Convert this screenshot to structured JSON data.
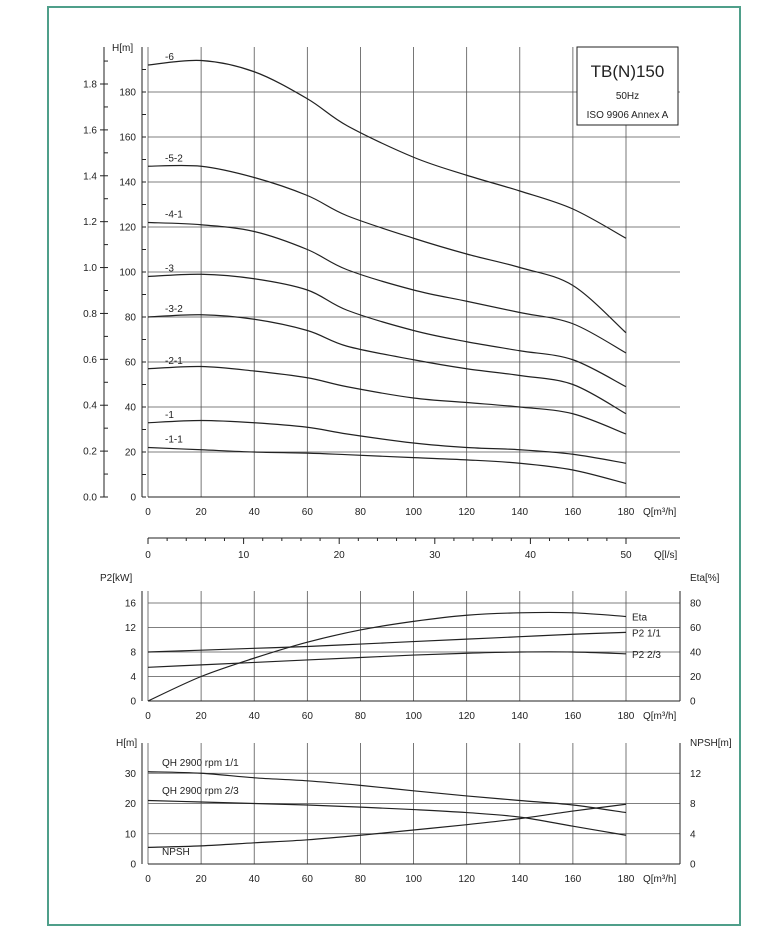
{
  "colors": {
    "frame": "#4f9f8a",
    "curve": "#222222",
    "grid": "#555555"
  },
  "chart_data": [
    {
      "type": "line",
      "id": "head",
      "title_box": {
        "line1": "TB(N)150",
        "line2": "50Hz",
        "line3": "ISO 9906 Annex A"
      },
      "ylabel": "H[m]",
      "y2label": "",
      "xlabel": "Q[m³/h]",
      "xlim": [
        0,
        180
      ],
      "ylim": [
        0,
        200
      ],
      "y2lim": [
        0,
        1.8
      ],
      "x_ticks": [
        "0",
        "20",
        "40",
        "60",
        "80",
        "100",
        "120",
        "140",
        "160",
        "180"
      ],
      "y_ticks": [
        "0",
        "20",
        "40",
        "60",
        "80",
        "100",
        "120",
        "140",
        "160",
        "180"
      ],
      "y2_ticks": [
        "0.0",
        "0.2",
        "0.4",
        "0.6",
        "0.8",
        "1.0",
        "1.2",
        "1.4",
        "1.6",
        "1.8"
      ],
      "secondary_x": {
        "label": "Q[l/s]",
        "ticks": [
          "0",
          "10",
          "20",
          "30",
          "40",
          "50"
        ],
        "xlim": [
          0,
          50
        ]
      },
      "series": [
        {
          "name": "-6",
          "x": [
            0,
            20,
            40,
            60,
            75,
            100,
            120,
            140,
            160,
            180
          ],
          "y": [
            192,
            194,
            189,
            177,
            165,
            151,
            143,
            136,
            128,
            115
          ]
        },
        {
          "name": "-5-2",
          "x": [
            0,
            20,
            40,
            60,
            75,
            100,
            120,
            140,
            160,
            180
          ],
          "y": [
            147,
            147,
            142,
            134,
            125,
            115,
            108,
            102,
            94,
            73
          ]
        },
        {
          "name": "-4-1",
          "x": [
            0,
            20,
            40,
            60,
            75,
            100,
            120,
            140,
            160,
            180
          ],
          "y": [
            122,
            121,
            118,
            110,
            101,
            92,
            87,
            82,
            77,
            64
          ]
        },
        {
          "name": "-3",
          "x": [
            0,
            20,
            40,
            60,
            75,
            100,
            120,
            140,
            160,
            180
          ],
          "y": [
            98,
            99,
            97,
            92,
            83,
            74,
            69,
            65,
            61,
            49
          ]
        },
        {
          "name": "-3-2",
          "x": [
            0,
            20,
            40,
            60,
            75,
            100,
            120,
            140,
            160,
            180
          ],
          "y": [
            80,
            81,
            79,
            74,
            67,
            61,
            57,
            54,
            50,
            37
          ]
        },
        {
          "name": "-2-1",
          "x": [
            0,
            20,
            40,
            60,
            75,
            100,
            120,
            140,
            160,
            180
          ],
          "y": [
            57,
            58,
            56,
            53,
            49,
            44,
            42,
            40,
            37,
            28
          ]
        },
        {
          "name": "-1",
          "x": [
            0,
            20,
            40,
            60,
            75,
            100,
            120,
            140,
            160,
            180
          ],
          "y": [
            33,
            34,
            33,
            31,
            28,
            24,
            22,
            21,
            19,
            15
          ]
        },
        {
          "name": "-1-1",
          "x": [
            0,
            20,
            40,
            60,
            75,
            100,
            120,
            140,
            160,
            180
          ],
          "y": [
            22,
            21,
            20,
            19.5,
            18.8,
            17.5,
            16.5,
            15,
            12,
            6
          ]
        }
      ]
    },
    {
      "type": "line",
      "id": "power",
      "ylabel": "P2[kW]",
      "y2label": "Eta[%]",
      "xlabel": "Q[m³/h]",
      "xlim": [
        0,
        180
      ],
      "ylim": [
        0,
        16
      ],
      "y2lim": [
        0,
        80
      ],
      "x_ticks": [
        "0",
        "20",
        "40",
        "60",
        "80",
        "100",
        "120",
        "140",
        "160",
        "180"
      ],
      "y_ticks": [
        "0",
        "4",
        "8",
        "12",
        "16"
      ],
      "y2_ticks": [
        "0",
        "20",
        "40",
        "60",
        "80"
      ],
      "series": [
        {
          "name": "Eta",
          "axis": "right",
          "x": [
            0,
            20,
            40,
            60,
            80,
            100,
            120,
            140,
            160,
            180
          ],
          "y": [
            0,
            20,
            35,
            48,
            58,
            65,
            70,
            72,
            72,
            69
          ]
        },
        {
          "name": "P2 1/1",
          "axis": "left",
          "x": [
            0,
            20,
            40,
            60,
            80,
            100,
            120,
            140,
            160,
            180
          ],
          "y": [
            8.0,
            8.3,
            8.6,
            8.9,
            9.3,
            9.7,
            10.1,
            10.5,
            10.9,
            11.2
          ]
        },
        {
          "name": "P2 2/3",
          "axis": "left",
          "x": [
            0,
            20,
            40,
            60,
            80,
            100,
            120,
            140,
            160,
            180
          ],
          "y": [
            5.5,
            5.9,
            6.3,
            6.7,
            7.1,
            7.5,
            7.8,
            8.0,
            8.0,
            7.7
          ]
        }
      ]
    },
    {
      "type": "line",
      "id": "npsh",
      "ylabel": "H[m]",
      "y2label": "NPSH[m]",
      "xlabel": "Q[m³/h]",
      "xlim": [
        0,
        180
      ],
      "ylim": [
        0,
        40
      ],
      "y2lim": [
        0,
        16
      ],
      "x_ticks": [
        "0",
        "20",
        "40",
        "60",
        "80",
        "100",
        "120",
        "140",
        "160",
        "180"
      ],
      "y_ticks": [
        "0",
        "10",
        "20",
        "30"
      ],
      "y2_ticks": [
        "0",
        "4",
        "8",
        "12"
      ],
      "series": [
        {
          "name": "QH 2900 rpm 1/1",
          "axis": "left",
          "x": [
            0,
            20,
            40,
            60,
            80,
            100,
            120,
            140,
            160,
            180
          ],
          "y": [
            30.5,
            30,
            28.5,
            27.5,
            26,
            24.2,
            22.5,
            21,
            19.5,
            17
          ]
        },
        {
          "name": "QH 2900 rpm 2/3",
          "axis": "left",
          "x": [
            0,
            20,
            40,
            60,
            80,
            100,
            120,
            140,
            160,
            180
          ],
          "y": [
            21,
            20.5,
            20,
            19.5,
            18.8,
            18,
            17,
            15.5,
            12.5,
            9.5
          ]
        },
        {
          "name": "NPSH",
          "axis": "right",
          "x": [
            0,
            20,
            40,
            60,
            80,
            100,
            120,
            140,
            160,
            180
          ],
          "y": [
            2.2,
            2.4,
            2.8,
            3.2,
            3.8,
            4.5,
            5.2,
            6.0,
            7.0,
            7.9
          ]
        }
      ]
    }
  ]
}
